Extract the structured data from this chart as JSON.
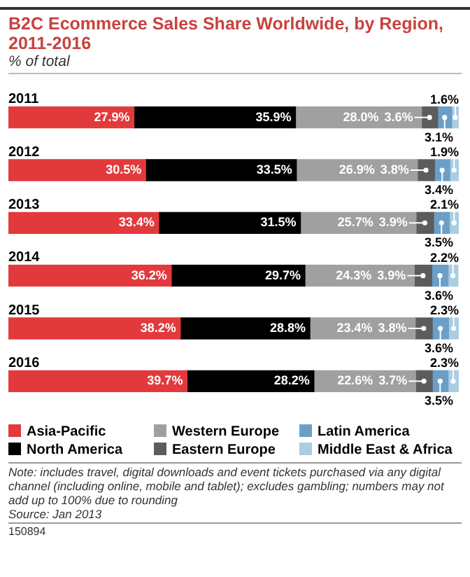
{
  "chart_data": {
    "type": "bar",
    "orientation": "horizontal",
    "stacked": true,
    "title": "B2C Ecommerce Sales Share Worldwide, by Region, 2011-2016",
    "subtitle": "% of total",
    "categories": [
      "2011",
      "2012",
      "2013",
      "2014",
      "2015",
      "2016"
    ],
    "series": [
      {
        "name": "Asia-Pacific",
        "color": "#e23a3c",
        "values": [
          27.9,
          30.5,
          33.4,
          36.2,
          38.2,
          39.7
        ],
        "value_labels": [
          "27.9%",
          "30.5%",
          "33.4%",
          "36.2%",
          "38.2%",
          "39.7%"
        ]
      },
      {
        "name": "North America",
        "color": "#000000",
        "values": [
          35.9,
          33.5,
          31.5,
          29.7,
          28.8,
          28.2
        ],
        "value_labels": [
          "35.9%",
          "33.5%",
          "31.5%",
          "29.7%",
          "28.8%",
          "28.2%"
        ]
      },
      {
        "name": "Western Europe",
        "color": "#a0a0a0",
        "values": [
          28.0,
          26.9,
          25.7,
          24.3,
          23.4,
          22.6
        ],
        "value_labels": [
          "28.0%",
          "26.9%",
          "25.7%",
          "24.3%",
          "23.4%",
          "22.6%"
        ]
      },
      {
        "name": "Eastern Europe",
        "color": "#5c5c5c",
        "values": [
          3.6,
          3.8,
          3.9,
          3.9,
          3.8,
          3.7
        ],
        "value_labels": [
          "3.6%",
          "3.8%",
          "3.9%",
          "3.9%",
          "3.8%",
          "3.7%"
        ]
      },
      {
        "name": "Latin America",
        "color": "#6b9fc7",
        "values": [
          3.1,
          3.4,
          3.5,
          3.6,
          3.6,
          3.5
        ],
        "value_labels": [
          "3.1%",
          "3.4%",
          "3.5%",
          "3.6%",
          "3.6%",
          "3.5%"
        ]
      },
      {
        "name": "Middle East & Africa",
        "color": "#aacde3",
        "values": [
          1.6,
          1.9,
          2.1,
          2.2,
          2.3,
          2.3
        ],
        "value_labels": [
          "1.6%",
          "1.9%",
          "2.1%",
          "2.2%",
          "2.3%",
          "2.3%"
        ]
      }
    ],
    "legend": "bottom",
    "annotations": [
      "Note: includes travel, digital downloads and event tickets purchased via any digital channel (including online, mobile and tablet); excludes gambling; numbers may not add up to 100% due to rounding",
      "Source: Jan 2013",
      "150894"
    ]
  }
}
